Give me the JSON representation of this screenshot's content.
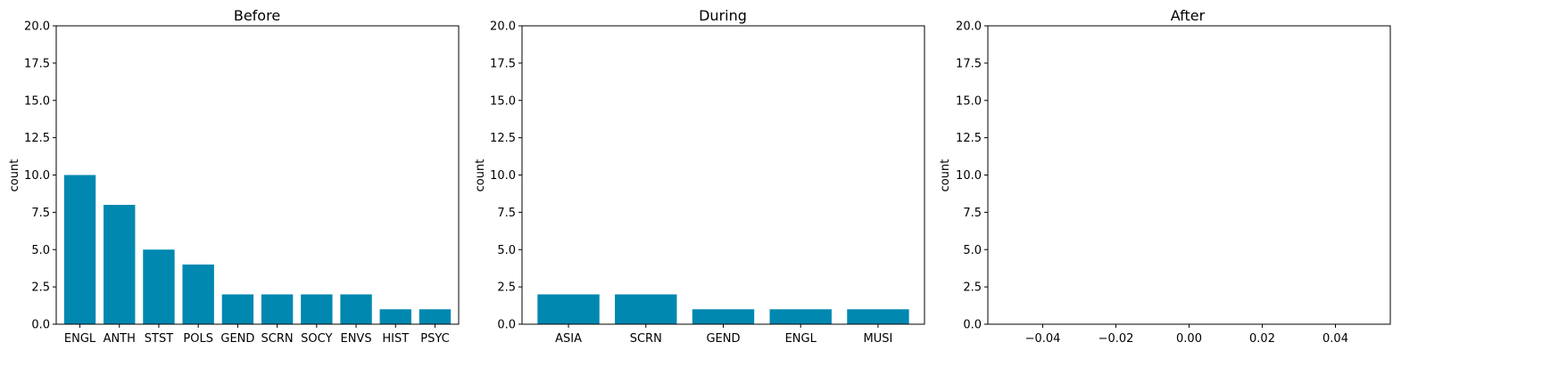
{
  "chart_data": [
    {
      "type": "bar",
      "title": "Before",
      "ylabel": "count",
      "xlabel": "",
      "ylim": [
        0,
        20
      ],
      "yticks": [
        "0.0",
        "2.5",
        "5.0",
        "7.5",
        "10.0",
        "12.5",
        "15.0",
        "17.5",
        "20.0"
      ],
      "categories": [
        "ENGL",
        "ANTH",
        "STST",
        "POLS",
        "GEND",
        "SCRN",
        "SOCY",
        "ENVS",
        "HIST",
        "PSYC"
      ],
      "values": [
        10,
        8,
        5,
        4,
        2,
        2,
        2,
        2,
        1,
        1
      ],
      "color": "#0088b0",
      "grid": false
    },
    {
      "type": "bar",
      "title": "During",
      "ylabel": "count",
      "xlabel": "",
      "ylim": [
        0,
        20
      ],
      "yticks": [
        "0.0",
        "2.5",
        "5.0",
        "7.5",
        "10.0",
        "12.5",
        "15.0",
        "17.5",
        "20.0"
      ],
      "categories": [
        "ASIA",
        "SCRN",
        "GEND",
        "ENGL",
        "MUSI"
      ],
      "values": [
        2,
        2,
        1,
        1,
        1
      ],
      "color": "#0088b0",
      "grid": false
    },
    {
      "type": "bar",
      "title": "After",
      "ylabel": "count",
      "xlabel": "",
      "ylim": [
        0,
        20
      ],
      "yticks": [
        "0.0",
        "2.5",
        "5.0",
        "7.5",
        "10.0",
        "12.5",
        "15.0",
        "17.5",
        "20.0"
      ],
      "xlim": [
        -0.055,
        0.055
      ],
      "xticks": [
        "−0.04",
        "−0.02",
        "0.00",
        "0.02",
        "0.04"
      ],
      "xtick_values": [
        -0.04,
        -0.02,
        0.0,
        0.02,
        0.04
      ],
      "categories": [],
      "values": [],
      "color": "#0088b0",
      "grid": false
    }
  ]
}
